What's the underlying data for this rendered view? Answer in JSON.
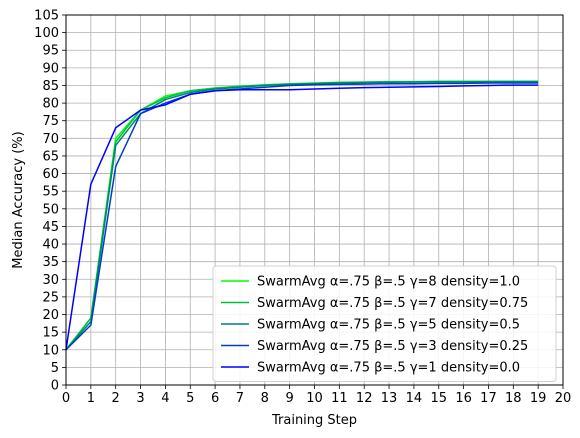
{
  "chart_data": {
    "type": "line",
    "title": "",
    "xlabel": "Training Step",
    "ylabel": "Median Accuracy (%)",
    "xlim": [
      0,
      20
    ],
    "ylim": [
      0,
      105
    ],
    "xticks": [
      0,
      1,
      2,
      3,
      4,
      5,
      6,
      7,
      8,
      9,
      10,
      11,
      12,
      13,
      14,
      15,
      16,
      17,
      18,
      19,
      20
    ],
    "yticks": [
      0,
      5,
      10,
      15,
      20,
      25,
      30,
      35,
      40,
      45,
      50,
      55,
      60,
      65,
      70,
      75,
      80,
      85,
      90,
      95,
      100,
      105
    ],
    "grid": true,
    "legend_position": "lower-right",
    "x": [
      0,
      1,
      2,
      3,
      4,
      5,
      6,
      7,
      8,
      9,
      10,
      11,
      12,
      13,
      14,
      15,
      16,
      17,
      18,
      19
    ],
    "series": [
      {
        "name": "SwarmAvg α=.75 β=.5 γ=8 density=1.0",
        "color": "#00ff00",
        "values": [
          10,
          19,
          70,
          78,
          82,
          83.5,
          84.3,
          84.8,
          85.2,
          85.5,
          85.7,
          85.9,
          86.0,
          86.1,
          86.1,
          86.2,
          86.2,
          86.2,
          86.2,
          86.2
        ]
      },
      {
        "name": "SwarmAvg α=.75 β=.5 γ=7 density=0.75",
        "color": "#00c040",
        "values": [
          10,
          19,
          69,
          78,
          81.5,
          83.5,
          84.2,
          84.7,
          85.1,
          85.4,
          85.6,
          85.8,
          85.9,
          86.0,
          86.0,
          86.1,
          86.1,
          86.1,
          86.1,
          86.1
        ]
      },
      {
        "name": "SwarmAvg α=.75 β=.5 γ=5 density=0.5",
        "color": "#008080",
        "values": [
          10,
          18,
          68,
          77,
          81,
          83,
          84,
          84.5,
          85,
          85.3,
          85.5,
          85.7,
          85.8,
          85.9,
          86.0,
          86.0,
          86.0,
          86.1,
          86.1,
          86.1
        ]
      },
      {
        "name": "SwarmAvg α=.75 β=.5 γ=3 density=0.25",
        "color": "#0040c0",
        "values": [
          10,
          17,
          62,
          77,
          80,
          82.5,
          83.5,
          84,
          84.5,
          85,
          85.2,
          85.3,
          85.4,
          85.5,
          85.5,
          85.6,
          85.6,
          85.7,
          85.7,
          85.7
        ]
      },
      {
        "name": "SwarmAvg α=.75 β=.5 γ=1 density=0.0",
        "color": "#0000ff",
        "values": [
          10,
          57,
          73,
          78,
          79.5,
          82.5,
          83.5,
          83.8,
          83.8,
          83.8,
          84.0,
          84.2,
          84.4,
          84.5,
          84.6,
          84.7,
          84.9,
          85.0,
          85.1,
          85.1
        ]
      }
    ]
  }
}
